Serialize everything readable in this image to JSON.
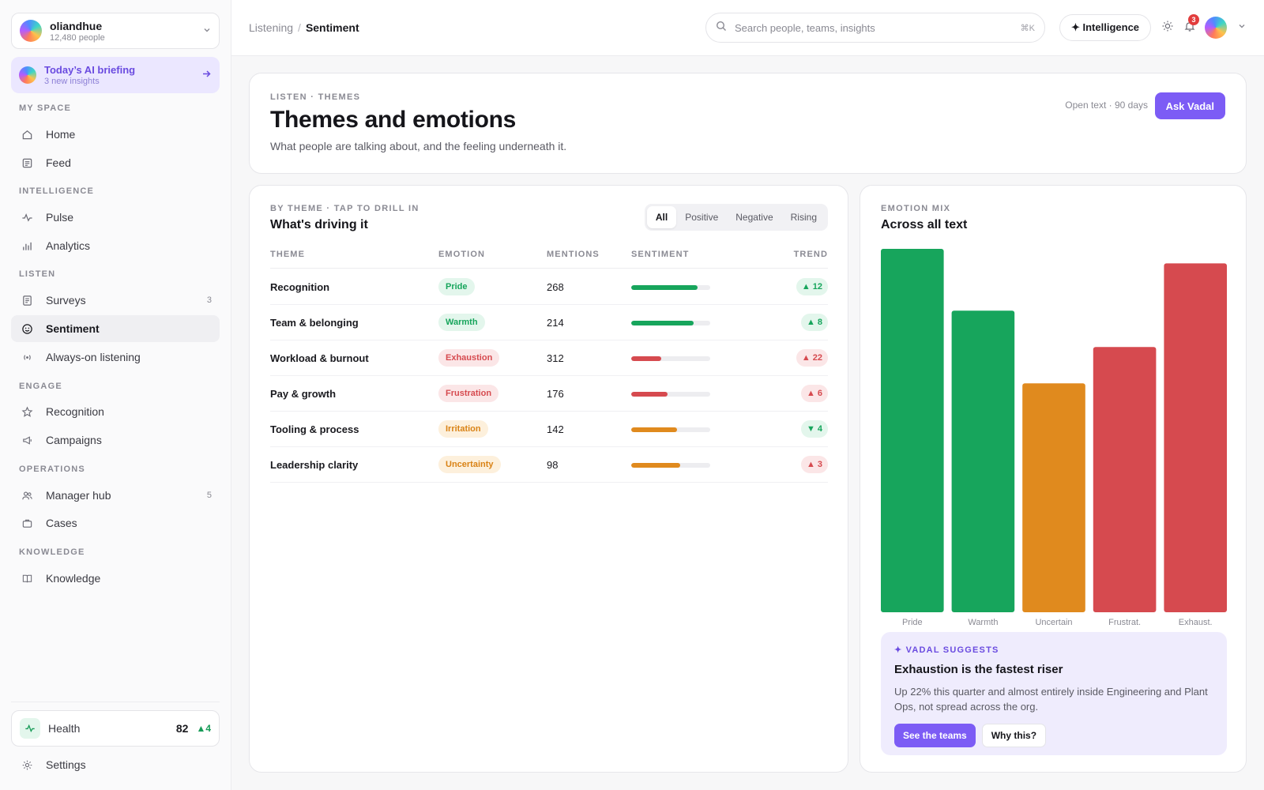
{
  "org": {
    "name": "oliandhue",
    "people": "12,480 people"
  },
  "briefing": {
    "title": "Today’s AI briefing",
    "sub": "3 new insights"
  },
  "nav": {
    "sections": [
      "MY SPACE",
      "INTELLIGENCE",
      "LISTEN",
      "ENGAGE",
      "OPERATIONS",
      "KNOWLEDGE"
    ],
    "items": [
      {
        "label": "Home",
        "icon": "home-icon"
      },
      {
        "label": "Feed",
        "icon": "feed-icon"
      },
      {
        "label": "Pulse",
        "icon": "pulse-icon"
      },
      {
        "label": "Analytics",
        "icon": "analytics-icon"
      },
      {
        "label": "Surveys",
        "icon": "survey-icon",
        "count": "3"
      },
      {
        "label": "Sentiment",
        "icon": "smile-icon",
        "active": true
      },
      {
        "label": "Always-on listening",
        "icon": "radio-icon"
      },
      {
        "label": "Recognition",
        "icon": "star-icon"
      },
      {
        "label": "Campaigns",
        "icon": "megaphone-icon"
      },
      {
        "label": "Manager hub",
        "icon": "people-icon",
        "count": "5"
      },
      {
        "label": "Cases",
        "icon": "briefcase-icon"
      },
      {
        "label": "Knowledge",
        "icon": "book-icon"
      }
    ]
  },
  "health": {
    "label": "Health",
    "value": "82",
    "delta": "▲4"
  },
  "settings": {
    "label": "Settings"
  },
  "breadcrumb": {
    "parent": "Listening",
    "sep": "/",
    "current": "Sentiment"
  },
  "search": {
    "placeholder": "Search people, teams, insights",
    "shortcut": "⌘K"
  },
  "intelligence_button": "✦ Intelligence",
  "notifications": {
    "count": "3"
  },
  "header": {
    "eyebrow": "LISTEN · THEMES",
    "title": "Themes and emotions",
    "subtitle": "What people are talking about, and the feeling underneath it.",
    "meta": "Open text · 90 days",
    "ask_button": "Ask Vadal"
  },
  "themes": {
    "eyebrow": "BY THEME · TAP TO DRILL IN",
    "title": "What's driving it",
    "filters": [
      "All",
      "Positive",
      "Negative",
      "Rising"
    ],
    "columns": [
      "THEME",
      "EMOTION",
      "MENTIONS",
      "SENTIMENT",
      "TREND"
    ],
    "rows": [
      {
        "theme": "Recognition",
        "emotion": "Pride",
        "tone": "positive",
        "mentions": "268",
        "sentiment": 0.84,
        "trend": "▲ 12",
        "trend_tone": "positive"
      },
      {
        "theme": "Team & belonging",
        "emotion": "Warmth",
        "tone": "positive",
        "mentions": "214",
        "sentiment": 0.79,
        "trend": "▲ 8",
        "trend_tone": "positive"
      },
      {
        "theme": "Workload & burnout",
        "emotion": "Exhaustion",
        "tone": "negative",
        "mentions": "312",
        "sentiment": 0.38,
        "trend": "▲ 22",
        "trend_tone": "negative"
      },
      {
        "theme": "Pay & growth",
        "emotion": "Frustration",
        "tone": "negative",
        "mentions": "176",
        "sentiment": 0.46,
        "trend": "▲ 6",
        "trend_tone": "negative"
      },
      {
        "theme": "Tooling & process",
        "emotion": "Irritation",
        "tone": "neutral",
        "mentions": "142",
        "sentiment": 0.58,
        "trend": "▼ 4",
        "trend_tone": "positive"
      },
      {
        "theme": "Leadership clarity",
        "emotion": "Uncertainty",
        "tone": "neutral",
        "mentions": "98",
        "sentiment": 0.62,
        "trend": "▲ 3",
        "trend_tone": "negative"
      }
    ]
  },
  "emotion_mix": {
    "eyebrow": "EMOTION MIX",
    "title": "Across all text"
  },
  "chart_data": {
    "type": "bar",
    "categories": [
      "Pride",
      "Warmth",
      "Uncertain",
      "Frustrat.",
      "Exhaust."
    ],
    "values": [
      100,
      83,
      63,
      73,
      96
    ],
    "colors": [
      "#17a55c",
      "#17a55c",
      "#e08a1e",
      "#d64a4f",
      "#d64a4f"
    ],
    "ylim": [
      0,
      100
    ],
    "grid": false
  },
  "suggestion": {
    "eyebrow": "✦ VADAL SUGGESTS",
    "title": "Exhaustion is the fastest riser",
    "body": "Up 22% this quarter and almost entirely inside Engineering and Plant Ops, not spread across the org.",
    "primary": "See the teams",
    "secondary": "Why this?"
  },
  "colors": {
    "accent": "#7c5cf5",
    "positive": "#17a55c",
    "negative": "#d64a4f",
    "neutral": "#e08a1e"
  }
}
